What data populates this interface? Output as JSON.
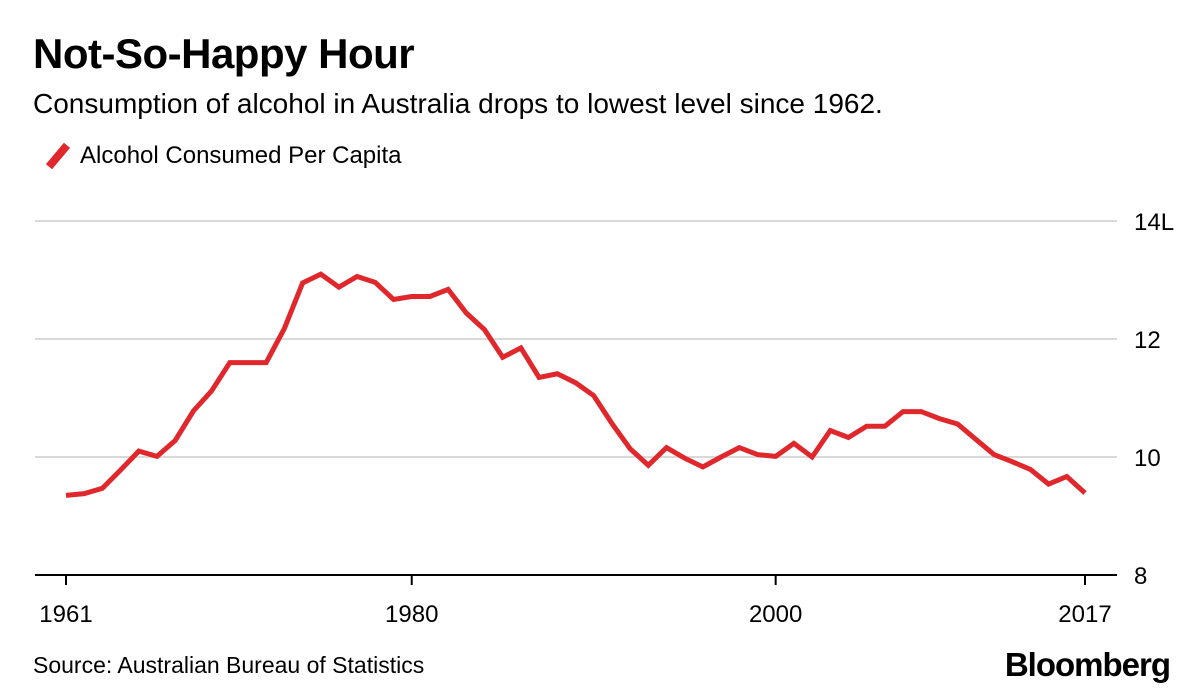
{
  "header": {
    "title": "Not-So-Happy Hour",
    "subtitle": "Consumption of alcohol in Australia drops to lowest level since 1962."
  },
  "footer": {
    "source": "Source: Australian Bureau of Statistics",
    "brand": "Bloomberg"
  },
  "colors": {
    "series": "#e0282c",
    "grid": "#d9d9d9",
    "axis": "#000000"
  },
  "chart_data": {
    "type": "line",
    "title": "Not-So-Happy Hour",
    "subtitle": "Consumption of alcohol in Australia drops to lowest level since 1962.",
    "xlabel": "",
    "ylabel": "",
    "xlim": [
      1961,
      2017
    ],
    "ylim": [
      8,
      14
    ],
    "y_ticks": [
      {
        "value": 14,
        "label": "14L"
      },
      {
        "value": 12,
        "label": "12"
      },
      {
        "value": 10,
        "label": "10"
      },
      {
        "value": 8,
        "label": "8"
      }
    ],
    "x_ticks": [
      {
        "value": 1961,
        "label": "1961"
      },
      {
        "value": 1980,
        "label": "1980"
      },
      {
        "value": 2000,
        "label": "2000"
      },
      {
        "value": 2017,
        "label": "2017"
      }
    ],
    "grid": true,
    "legend_position": "top-left",
    "series": [
      {
        "name": "Alcohol Consumed Per Capita",
        "x": [
          1961,
          1962,
          1963,
          1964,
          1965,
          1966,
          1967,
          1968,
          1969,
          1970,
          1971,
          1972,
          1973,
          1974,
          1975,
          1976,
          1977,
          1978,
          1979,
          1980,
          1981,
          1982,
          1983,
          1984,
          1985,
          1986,
          1987,
          1988,
          1989,
          1990,
          1991,
          1992,
          1993,
          1994,
          1995,
          1996,
          1997,
          1998,
          1999,
          2000,
          2001,
          2002,
          2003,
          2004,
          2005,
          2006,
          2007,
          2008,
          2009,
          2010,
          2011,
          2012,
          2013,
          2014,
          2015,
          2016,
          2017
        ],
        "values": [
          9.35,
          9.38,
          9.47,
          9.78,
          10.1,
          10.01,
          10.28,
          10.78,
          11.12,
          11.6,
          11.6,
          11.6,
          12.18,
          12.95,
          13.1,
          12.88,
          13.06,
          12.96,
          12.67,
          12.72,
          12.72,
          12.84,
          12.44,
          12.16,
          11.69,
          11.85,
          11.35,
          11.41,
          11.26,
          11.04,
          10.57,
          10.14,
          9.86,
          10.16,
          9.98,
          9.83,
          10.0,
          10.16,
          10.04,
          10.01,
          10.23,
          10.0,
          10.45,
          10.33,
          10.52,
          10.52,
          10.77,
          10.77,
          10.65,
          10.56,
          10.3,
          10.04,
          9.92,
          9.79,
          9.54,
          9.67,
          9.39
        ]
      }
    ]
  }
}
